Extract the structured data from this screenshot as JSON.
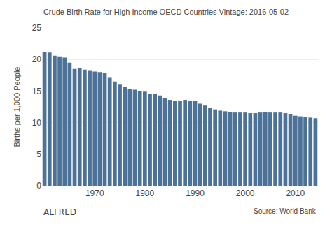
{
  "chart_data": {
    "type": "bar",
    "title": "Crude Birth Rate for High Income OECD Countries Vintage: 2016-05-02",
    "y_label": "Births per 1,000 People",
    "annotations": [
      "ALFRED",
      "Source: World Bank"
    ],
    "x": [
      1960,
      1961,
      1962,
      1963,
      1964,
      1965,
      1966,
      1967,
      1968,
      1969,
      1970,
      1971,
      1972,
      1973,
      1974,
      1975,
      1976,
      1977,
      1978,
      1979,
      1980,
      1981,
      1982,
      1983,
      1984,
      1985,
      1986,
      1987,
      1988,
      1989,
      1990,
      1991,
      1992,
      1993,
      1994,
      1995,
      1996,
      1997,
      1998,
      1999,
      2000,
      2001,
      2002,
      2003,
      2004,
      2005,
      2006,
      2007,
      2008,
      2009,
      2010,
      2011,
      2012,
      2013,
      2014
    ],
    "values": [
      21.2,
      21.1,
      20.6,
      20.5,
      20.3,
      19.5,
      18.5,
      18.6,
      18.4,
      18.3,
      18.1,
      18.0,
      17.8,
      17.1,
      16.5,
      16.0,
      15.6,
      15.3,
      15.2,
      15.0,
      14.9,
      14.6,
      14.5,
      14.3,
      13.9,
      13.6,
      13.5,
      13.5,
      13.6,
      13.5,
      13.4,
      13.0,
      12.7,
      12.3,
      12.1,
      11.9,
      11.8,
      11.7,
      11.6,
      11.6,
      11.6,
      11.5,
      11.5,
      11.6,
      11.7,
      11.6,
      11.6,
      11.6,
      11.5,
      11.3,
      11.1,
      11.0,
      10.9,
      10.8,
      10.7
    ],
    "color": "#4d7298",
    "xlim": [
      1959.5,
      2014.5
    ],
    "xticks": [
      1970,
      1980,
      1990,
      2000,
      2010
    ],
    "ylim": [
      0,
      25
    ],
    "yticks": [
      0,
      5,
      10,
      15,
      20,
      25
    ],
    "grid": true
  }
}
